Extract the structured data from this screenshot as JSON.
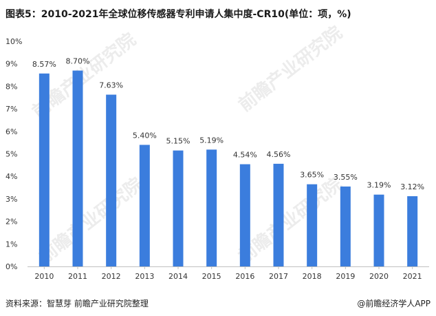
{
  "title": "图表5：2010-2021年全球位移传感器专利申请人集中度-CR10(单位：项，%)",
  "footer": {
    "source": "资料来源：智慧芽 前瞻产业研究院整理",
    "brand": "@前瞻经济学人APP"
  },
  "watermark": "前瞻产业研究院",
  "colors": {
    "bar": "#3b7ddd",
    "axis": "#bfbfbf",
    "text": "#333333"
  },
  "chart_data": {
    "type": "bar",
    "categories": [
      "2010",
      "2011",
      "2012",
      "2013",
      "2014",
      "2015",
      "2016",
      "2017",
      "2018",
      "2019",
      "2020",
      "2021"
    ],
    "values": [
      8.57,
      8.7,
      7.63,
      5.4,
      5.15,
      5.19,
      4.54,
      4.56,
      3.65,
      3.55,
      3.19,
      3.12
    ],
    "value_labels": [
      "8.57%",
      "8.70%",
      "7.63%",
      "5.40%",
      "5.15%",
      "5.19%",
      "4.54%",
      "4.56%",
      "3.65%",
      "3.55%",
      "3.19%",
      "3.12%"
    ],
    "yticks": [
      "0%",
      "1%",
      "2%",
      "3%",
      "4%",
      "5%",
      "6%",
      "7%",
      "8%",
      "9%",
      "10%"
    ],
    "ylim": [
      0,
      10
    ],
    "grid": false,
    "legend": "none"
  }
}
